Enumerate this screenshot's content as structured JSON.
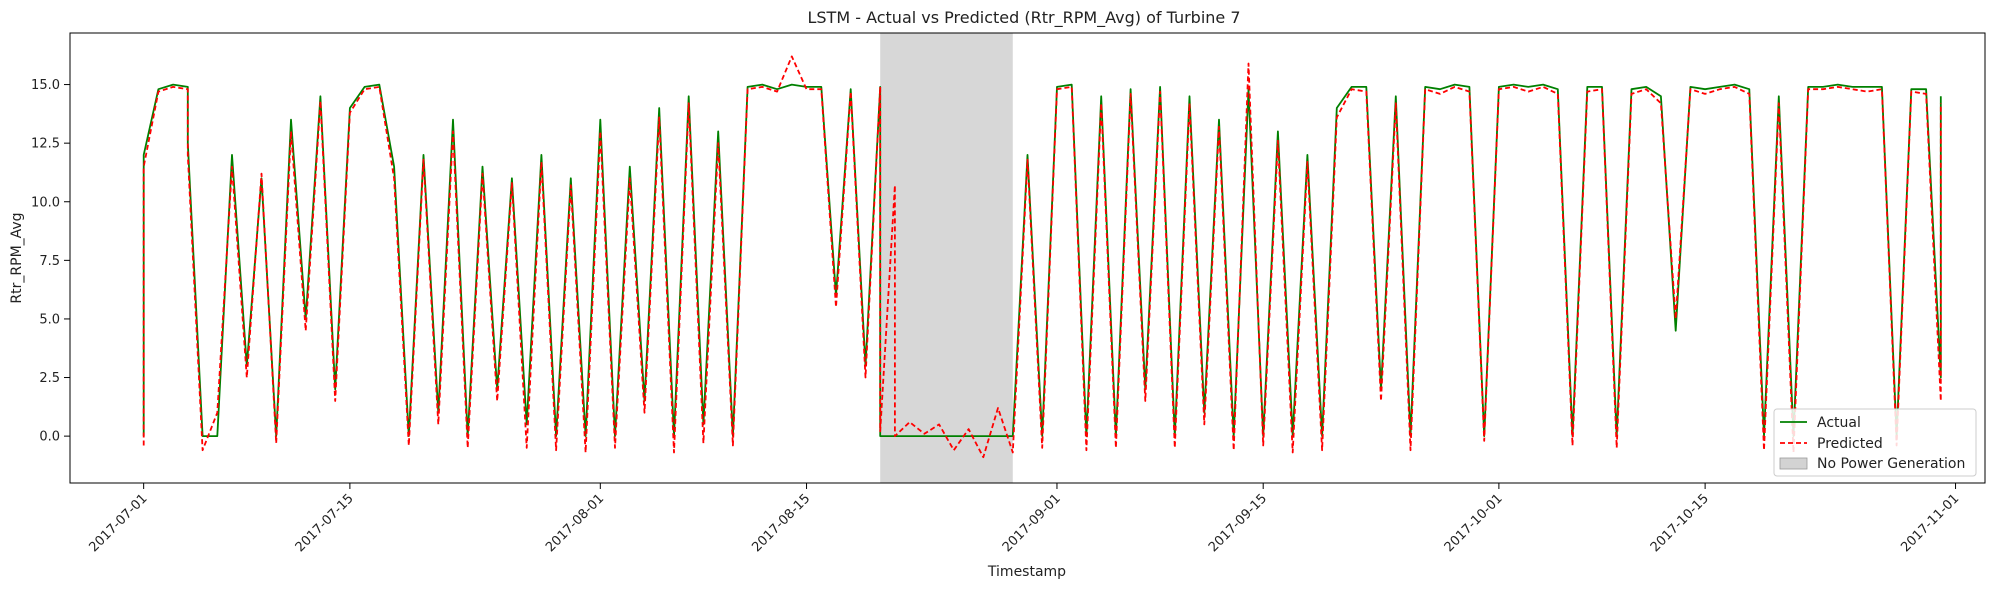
{
  "chart_data": {
    "type": "line",
    "title": "LSTM - Actual vs Predicted (Rtr_RPM_Avg) of Turbine 7",
    "xlabel": "Timestamp",
    "ylabel": "Rtr_RPM_Avg",
    "x_range": [
      "2017-06-26",
      "2017-11-03"
    ],
    "ylim": [
      -2.0,
      17.2
    ],
    "grid": false,
    "legend_position": "bottom-right",
    "x_ticks": [
      "2017-07-01",
      "2017-07-15",
      "2017-08-01",
      "2017-08-15",
      "2017-09-01",
      "2017-09-15",
      "2017-10-01",
      "2017-10-15",
      "2017-11-01"
    ],
    "y_ticks": [
      0.0,
      2.5,
      5.0,
      7.5,
      10.0,
      12.5,
      15.0
    ],
    "y_tick_labels": [
      "0.0",
      "2.5",
      "5.0",
      "7.5",
      "10.0",
      "12.5",
      "15.0"
    ],
    "shaded_regions": [
      {
        "name": "No Power Generation",
        "start": "2017-08-20",
        "end": "2017-08-29",
        "color": "#d3d3d3"
      }
    ],
    "series": [
      {
        "name": "Actual",
        "color": "#008000",
        "style": "solid",
        "points": [
          [
            "2017-07-01",
            0.0
          ],
          [
            "2017-07-01",
            12.0
          ],
          [
            "2017-07-02",
            14.8
          ],
          [
            "2017-07-03",
            15.0
          ],
          [
            "2017-07-04",
            14.9
          ],
          [
            "2017-07-04",
            12.5
          ],
          [
            "2017-07-05",
            0.0
          ],
          [
            "2017-07-06",
            0.0
          ],
          [
            "2017-07-07",
            12.0
          ],
          [
            "2017-07-08",
            3.0
          ],
          [
            "2017-07-09",
            11.0
          ],
          [
            "2017-07-10",
            0.0
          ],
          [
            "2017-07-11",
            13.5
          ],
          [
            "2017-07-12",
            5.0
          ],
          [
            "2017-07-13",
            14.5
          ],
          [
            "2017-07-14",
            2.0
          ],
          [
            "2017-07-15",
            14.0
          ],
          [
            "2017-07-16",
            14.9
          ],
          [
            "2017-07-17",
            15.0
          ],
          [
            "2017-07-18",
            11.5
          ],
          [
            "2017-07-19",
            0.0
          ],
          [
            "2017-07-20",
            12.0
          ],
          [
            "2017-07-21",
            1.0
          ],
          [
            "2017-07-22",
            13.5
          ],
          [
            "2017-07-23",
            0.0
          ],
          [
            "2017-07-24",
            11.5
          ],
          [
            "2017-07-25",
            2.0
          ],
          [
            "2017-07-26",
            11.0
          ],
          [
            "2017-07-27",
            0.5
          ],
          [
            "2017-07-28",
            12.0
          ],
          [
            "2017-07-29",
            0.0
          ],
          [
            "2017-07-30",
            11.0
          ],
          [
            "2017-07-31",
            0.0
          ],
          [
            "2017-08-01",
            13.5
          ],
          [
            "2017-08-02",
            0.0
          ],
          [
            "2017-08-03",
            11.5
          ],
          [
            "2017-08-04",
            1.5
          ],
          [
            "2017-08-05",
            14.0
          ],
          [
            "2017-08-06",
            0.0
          ],
          [
            "2017-08-07",
            14.5
          ],
          [
            "2017-08-08",
            0.5
          ],
          [
            "2017-08-09",
            13.0
          ],
          [
            "2017-08-10",
            0.0
          ],
          [
            "2017-08-11",
            14.9
          ],
          [
            "2017-08-12",
            15.0
          ],
          [
            "2017-08-13",
            14.8
          ],
          [
            "2017-08-14",
            15.0
          ],
          [
            "2017-08-15",
            14.9
          ],
          [
            "2017-08-16",
            14.9
          ],
          [
            "2017-08-17",
            6.0
          ],
          [
            "2017-08-18",
            14.8
          ],
          [
            "2017-08-19",
            3.0
          ],
          [
            "2017-08-20",
            14.9
          ],
          [
            "2017-08-20",
            0.0
          ],
          [
            "2017-08-29",
            0.0
          ],
          [
            "2017-08-30",
            12.0
          ],
          [
            "2017-08-31",
            0.0
          ],
          [
            "2017-09-01",
            14.9
          ],
          [
            "2017-09-02",
            15.0
          ],
          [
            "2017-09-03",
            0.0
          ],
          [
            "2017-09-04",
            14.5
          ],
          [
            "2017-09-05",
            0.0
          ],
          [
            "2017-09-06",
            14.8
          ],
          [
            "2017-09-07",
            2.0
          ],
          [
            "2017-09-08",
            14.9
          ],
          [
            "2017-09-09",
            0.0
          ],
          [
            "2017-09-10",
            14.5
          ],
          [
            "2017-09-11",
            1.0
          ],
          [
            "2017-09-12",
            13.5
          ],
          [
            "2017-09-13",
            0.0
          ],
          [
            "2017-09-14",
            14.8
          ],
          [
            "2017-09-15",
            0.0
          ],
          [
            "2017-09-16",
            13.0
          ],
          [
            "2017-09-17",
            0.0
          ],
          [
            "2017-09-18",
            12.0
          ],
          [
            "2017-09-19",
            0.0
          ],
          [
            "2017-09-20",
            14.0
          ],
          [
            "2017-09-21",
            14.9
          ],
          [
            "2017-09-22",
            14.9
          ],
          [
            "2017-09-23",
            2.0
          ],
          [
            "2017-09-24",
            14.5
          ],
          [
            "2017-09-25",
            0.0
          ],
          [
            "2017-09-26",
            14.9
          ],
          [
            "2017-09-27",
            14.8
          ],
          [
            "2017-09-28",
            15.0
          ],
          [
            "2017-09-29",
            14.9
          ],
          [
            "2017-09-30",
            0.0
          ],
          [
            "2017-10-01",
            14.9
          ],
          [
            "2017-10-02",
            15.0
          ],
          [
            "2017-10-03",
            14.9
          ],
          [
            "2017-10-04",
            15.0
          ],
          [
            "2017-10-05",
            14.8
          ],
          [
            "2017-10-06",
            0.0
          ],
          [
            "2017-10-07",
            14.9
          ],
          [
            "2017-10-08",
            14.9
          ],
          [
            "2017-10-09",
            0.0
          ],
          [
            "2017-10-10",
            14.8
          ],
          [
            "2017-10-11",
            14.9
          ],
          [
            "2017-10-12",
            14.5
          ],
          [
            "2017-10-13",
            4.5
          ],
          [
            "2017-10-14",
            14.9
          ],
          [
            "2017-10-15",
            14.8
          ],
          [
            "2017-10-16",
            14.9
          ],
          [
            "2017-10-17",
            15.0
          ],
          [
            "2017-10-18",
            14.8
          ],
          [
            "2017-10-19",
            0.0
          ],
          [
            "2017-10-20",
            14.5
          ],
          [
            "2017-10-21",
            0.0
          ],
          [
            "2017-10-22",
            14.9
          ],
          [
            "2017-10-23",
            14.9
          ],
          [
            "2017-10-24",
            15.0
          ],
          [
            "2017-10-25",
            14.9
          ],
          [
            "2017-10-26",
            14.9
          ],
          [
            "2017-10-27",
            14.9
          ],
          [
            "2017-10-28",
            0.0
          ],
          [
            "2017-10-29",
            14.8
          ],
          [
            "2017-10-30",
            14.8
          ],
          [
            "2017-10-31",
            2.5
          ],
          [
            "2017-10-31",
            14.5
          ]
        ]
      },
      {
        "name": "Predicted",
        "color": "#ff0000",
        "style": "dashed",
        "points": [
          [
            "2017-07-01",
            -0.4
          ],
          [
            "2017-07-01",
            11.5
          ],
          [
            "2017-07-02",
            14.7
          ],
          [
            "2017-07-03",
            14.9
          ],
          [
            "2017-07-04",
            14.8
          ],
          [
            "2017-07-04",
            12.0
          ],
          [
            "2017-07-05",
            -0.6
          ],
          [
            "2017-07-06",
            1.0
          ],
          [
            "2017-07-07",
            11.5
          ],
          [
            "2017-07-08",
            2.5
          ],
          [
            "2017-07-09",
            11.2
          ],
          [
            "2017-07-10",
            -0.3
          ],
          [
            "2017-07-11",
            13.0
          ],
          [
            "2017-07-12",
            4.5
          ],
          [
            "2017-07-13",
            14.3
          ],
          [
            "2017-07-14",
            1.5
          ],
          [
            "2017-07-15",
            13.8
          ],
          [
            "2017-07-16",
            14.8
          ],
          [
            "2017-07-17",
            14.9
          ],
          [
            "2017-07-18",
            11.0
          ],
          [
            "2017-07-19",
            -0.4
          ],
          [
            "2017-07-20",
            11.8
          ],
          [
            "2017-07-21",
            0.5
          ],
          [
            "2017-07-22",
            13.0
          ],
          [
            "2017-07-23",
            -0.5
          ],
          [
            "2017-07-24",
            11.2
          ],
          [
            "2017-07-25",
            1.5
          ],
          [
            "2017-07-26",
            10.8
          ],
          [
            "2017-07-27",
            -0.5
          ],
          [
            "2017-07-28",
            11.7
          ],
          [
            "2017-07-29",
            -0.6
          ],
          [
            "2017-07-30",
            10.7
          ],
          [
            "2017-07-31",
            -0.7
          ],
          [
            "2017-08-01",
            13.0
          ],
          [
            "2017-08-02",
            -0.5
          ],
          [
            "2017-08-03",
            11.0
          ],
          [
            "2017-08-04",
            1.0
          ],
          [
            "2017-08-05",
            13.6
          ],
          [
            "2017-08-06",
            -0.7
          ],
          [
            "2017-08-07",
            14.2
          ],
          [
            "2017-08-08",
            -0.3
          ],
          [
            "2017-08-09",
            12.5
          ],
          [
            "2017-08-10",
            -0.4
          ],
          [
            "2017-08-11",
            14.8
          ],
          [
            "2017-08-12",
            14.9
          ],
          [
            "2017-08-13",
            14.7
          ],
          [
            "2017-08-14",
            16.2
          ],
          [
            "2017-08-15",
            14.8
          ],
          [
            "2017-08-16",
            14.8
          ],
          [
            "2017-08-17",
            5.5
          ],
          [
            "2017-08-18",
            14.7
          ],
          [
            "2017-08-19",
            2.5
          ],
          [
            "2017-08-20",
            14.9
          ],
          [
            "2017-08-20",
            0.2
          ],
          [
            "2017-08-21",
            10.7
          ],
          [
            "2017-08-21",
            0.0
          ],
          [
            "2017-08-22",
            0.6
          ],
          [
            "2017-08-23",
            0.1
          ],
          [
            "2017-08-24",
            0.5
          ],
          [
            "2017-08-25",
            -0.6
          ],
          [
            "2017-08-26",
            0.3
          ],
          [
            "2017-08-27",
            -0.9
          ],
          [
            "2017-08-28",
            1.2
          ],
          [
            "2017-08-29",
            -0.7
          ],
          [
            "2017-08-30",
            11.8
          ],
          [
            "2017-08-31",
            -0.5
          ],
          [
            "2017-09-01",
            14.8
          ],
          [
            "2017-09-02",
            14.9
          ],
          [
            "2017-09-03",
            -0.6
          ],
          [
            "2017-09-04",
            14.2
          ],
          [
            "2017-09-05",
            -0.5
          ],
          [
            "2017-09-06",
            14.6
          ],
          [
            "2017-09-07",
            1.5
          ],
          [
            "2017-09-08",
            14.7
          ],
          [
            "2017-09-09",
            -0.5
          ],
          [
            "2017-09-10",
            14.2
          ],
          [
            "2017-09-11",
            0.5
          ],
          [
            "2017-09-12",
            13.2
          ],
          [
            "2017-09-13",
            -0.6
          ],
          [
            "2017-09-14",
            15.9
          ],
          [
            "2017-09-15",
            -0.4
          ],
          [
            "2017-09-16",
            12.6
          ],
          [
            "2017-09-17",
            -0.7
          ],
          [
            "2017-09-18",
            11.7
          ],
          [
            "2017-09-19",
            -0.6
          ],
          [
            "2017-09-20",
            13.6
          ],
          [
            "2017-09-21",
            14.8
          ],
          [
            "2017-09-22",
            14.7
          ],
          [
            "2017-09-23",
            1.5
          ],
          [
            "2017-09-24",
            14.2
          ],
          [
            "2017-09-25",
            -0.6
          ],
          [
            "2017-09-26",
            14.8
          ],
          [
            "2017-09-27",
            14.6
          ],
          [
            "2017-09-28",
            14.9
          ],
          [
            "2017-09-29",
            14.7
          ],
          [
            "2017-09-30",
            -0.2
          ],
          [
            "2017-10-01",
            14.8
          ],
          [
            "2017-10-02",
            14.9
          ],
          [
            "2017-10-03",
            14.7
          ],
          [
            "2017-10-04",
            14.9
          ],
          [
            "2017-10-05",
            14.6
          ],
          [
            "2017-10-06",
            -0.4
          ],
          [
            "2017-10-07",
            14.7
          ],
          [
            "2017-10-08",
            14.8
          ],
          [
            "2017-10-09",
            -0.5
          ],
          [
            "2017-10-10",
            14.6
          ],
          [
            "2017-10-11",
            14.8
          ],
          [
            "2017-10-12",
            14.2
          ],
          [
            "2017-10-13",
            5.0
          ],
          [
            "2017-10-14",
            14.8
          ],
          [
            "2017-10-15",
            14.6
          ],
          [
            "2017-10-16",
            14.8
          ],
          [
            "2017-10-17",
            14.9
          ],
          [
            "2017-10-18",
            14.6
          ],
          [
            "2017-10-19",
            -0.6
          ],
          [
            "2017-10-20",
            14.2
          ],
          [
            "2017-10-21",
            -0.7
          ],
          [
            "2017-10-22",
            14.8
          ],
          [
            "2017-10-23",
            14.8
          ],
          [
            "2017-10-24",
            14.9
          ],
          [
            "2017-10-25",
            14.8
          ],
          [
            "2017-10-26",
            14.7
          ],
          [
            "2017-10-27",
            14.8
          ],
          [
            "2017-10-28",
            -0.4
          ],
          [
            "2017-10-29",
            14.7
          ],
          [
            "2017-10-30",
            14.6
          ],
          [
            "2017-10-31",
            1.5
          ],
          [
            "2017-10-31",
            14.2
          ]
        ]
      }
    ]
  }
}
